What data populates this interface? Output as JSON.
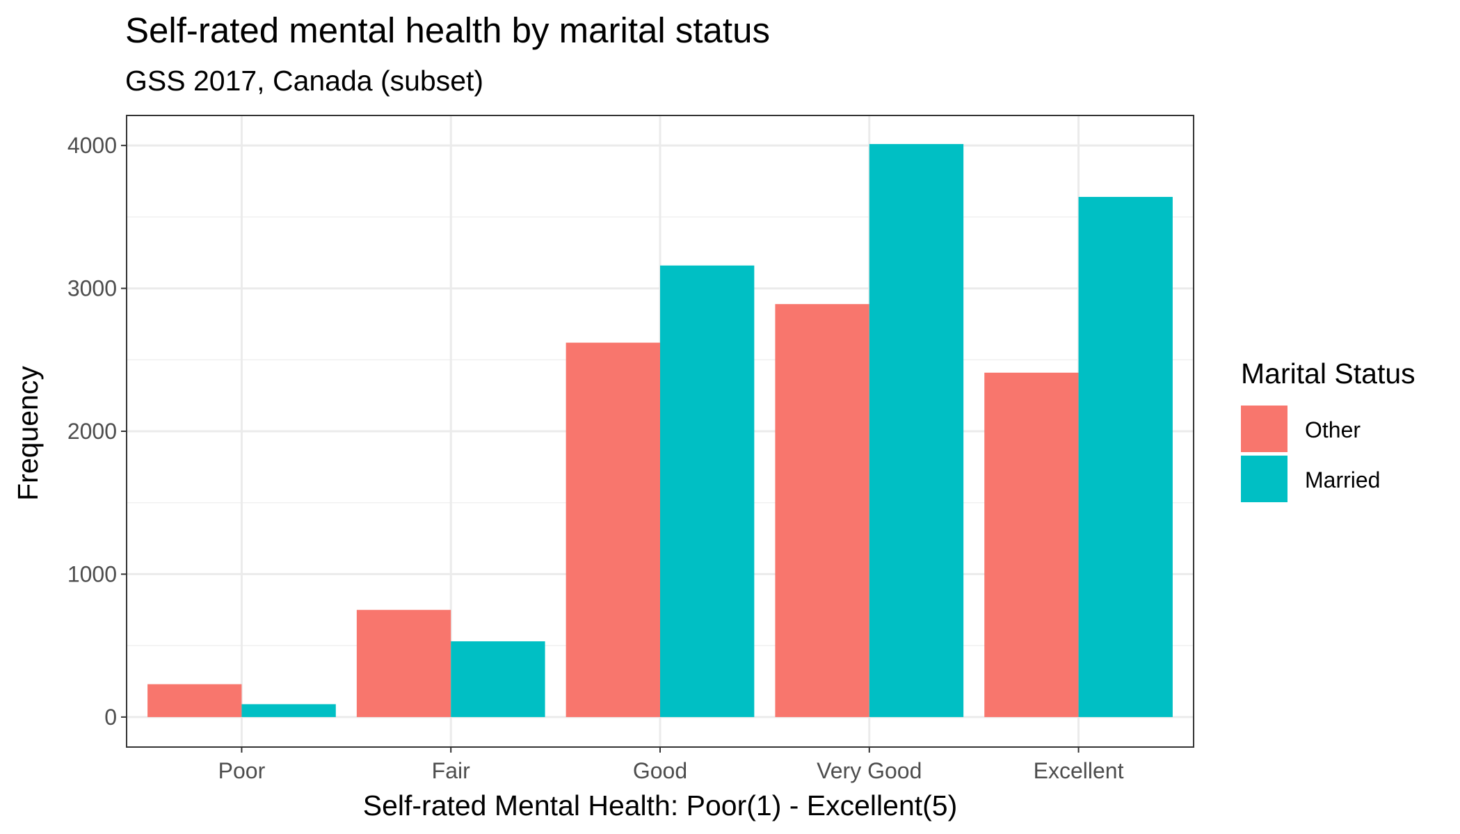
{
  "chart_data": {
    "type": "bar",
    "title": "Self-rated mental health by marital status",
    "subtitle": "GSS 2017, Canada (subset)",
    "xlabel": "Self-rated Mental Health: Poor(1) - Excellent(5)",
    "ylabel": "Frequency",
    "categories": [
      "Poor",
      "Fair",
      "Good",
      "Very Good",
      "Excellent"
    ],
    "series": [
      {
        "name": "Other",
        "color": "#F8766D",
        "values": [
          230,
          750,
          2620,
          2890,
          2410
        ]
      },
      {
        "name": "Married",
        "color": "#00BFC4",
        "values": [
          90,
          530,
          3160,
          4010,
          3640
        ]
      }
    ],
    "yticks": [
      0,
      1000,
      2000,
      3000,
      4000
    ],
    "ylim": [
      -210,
      4210
    ],
    "grid": true,
    "legend": {
      "title": "Marital Status",
      "position": "right"
    }
  }
}
